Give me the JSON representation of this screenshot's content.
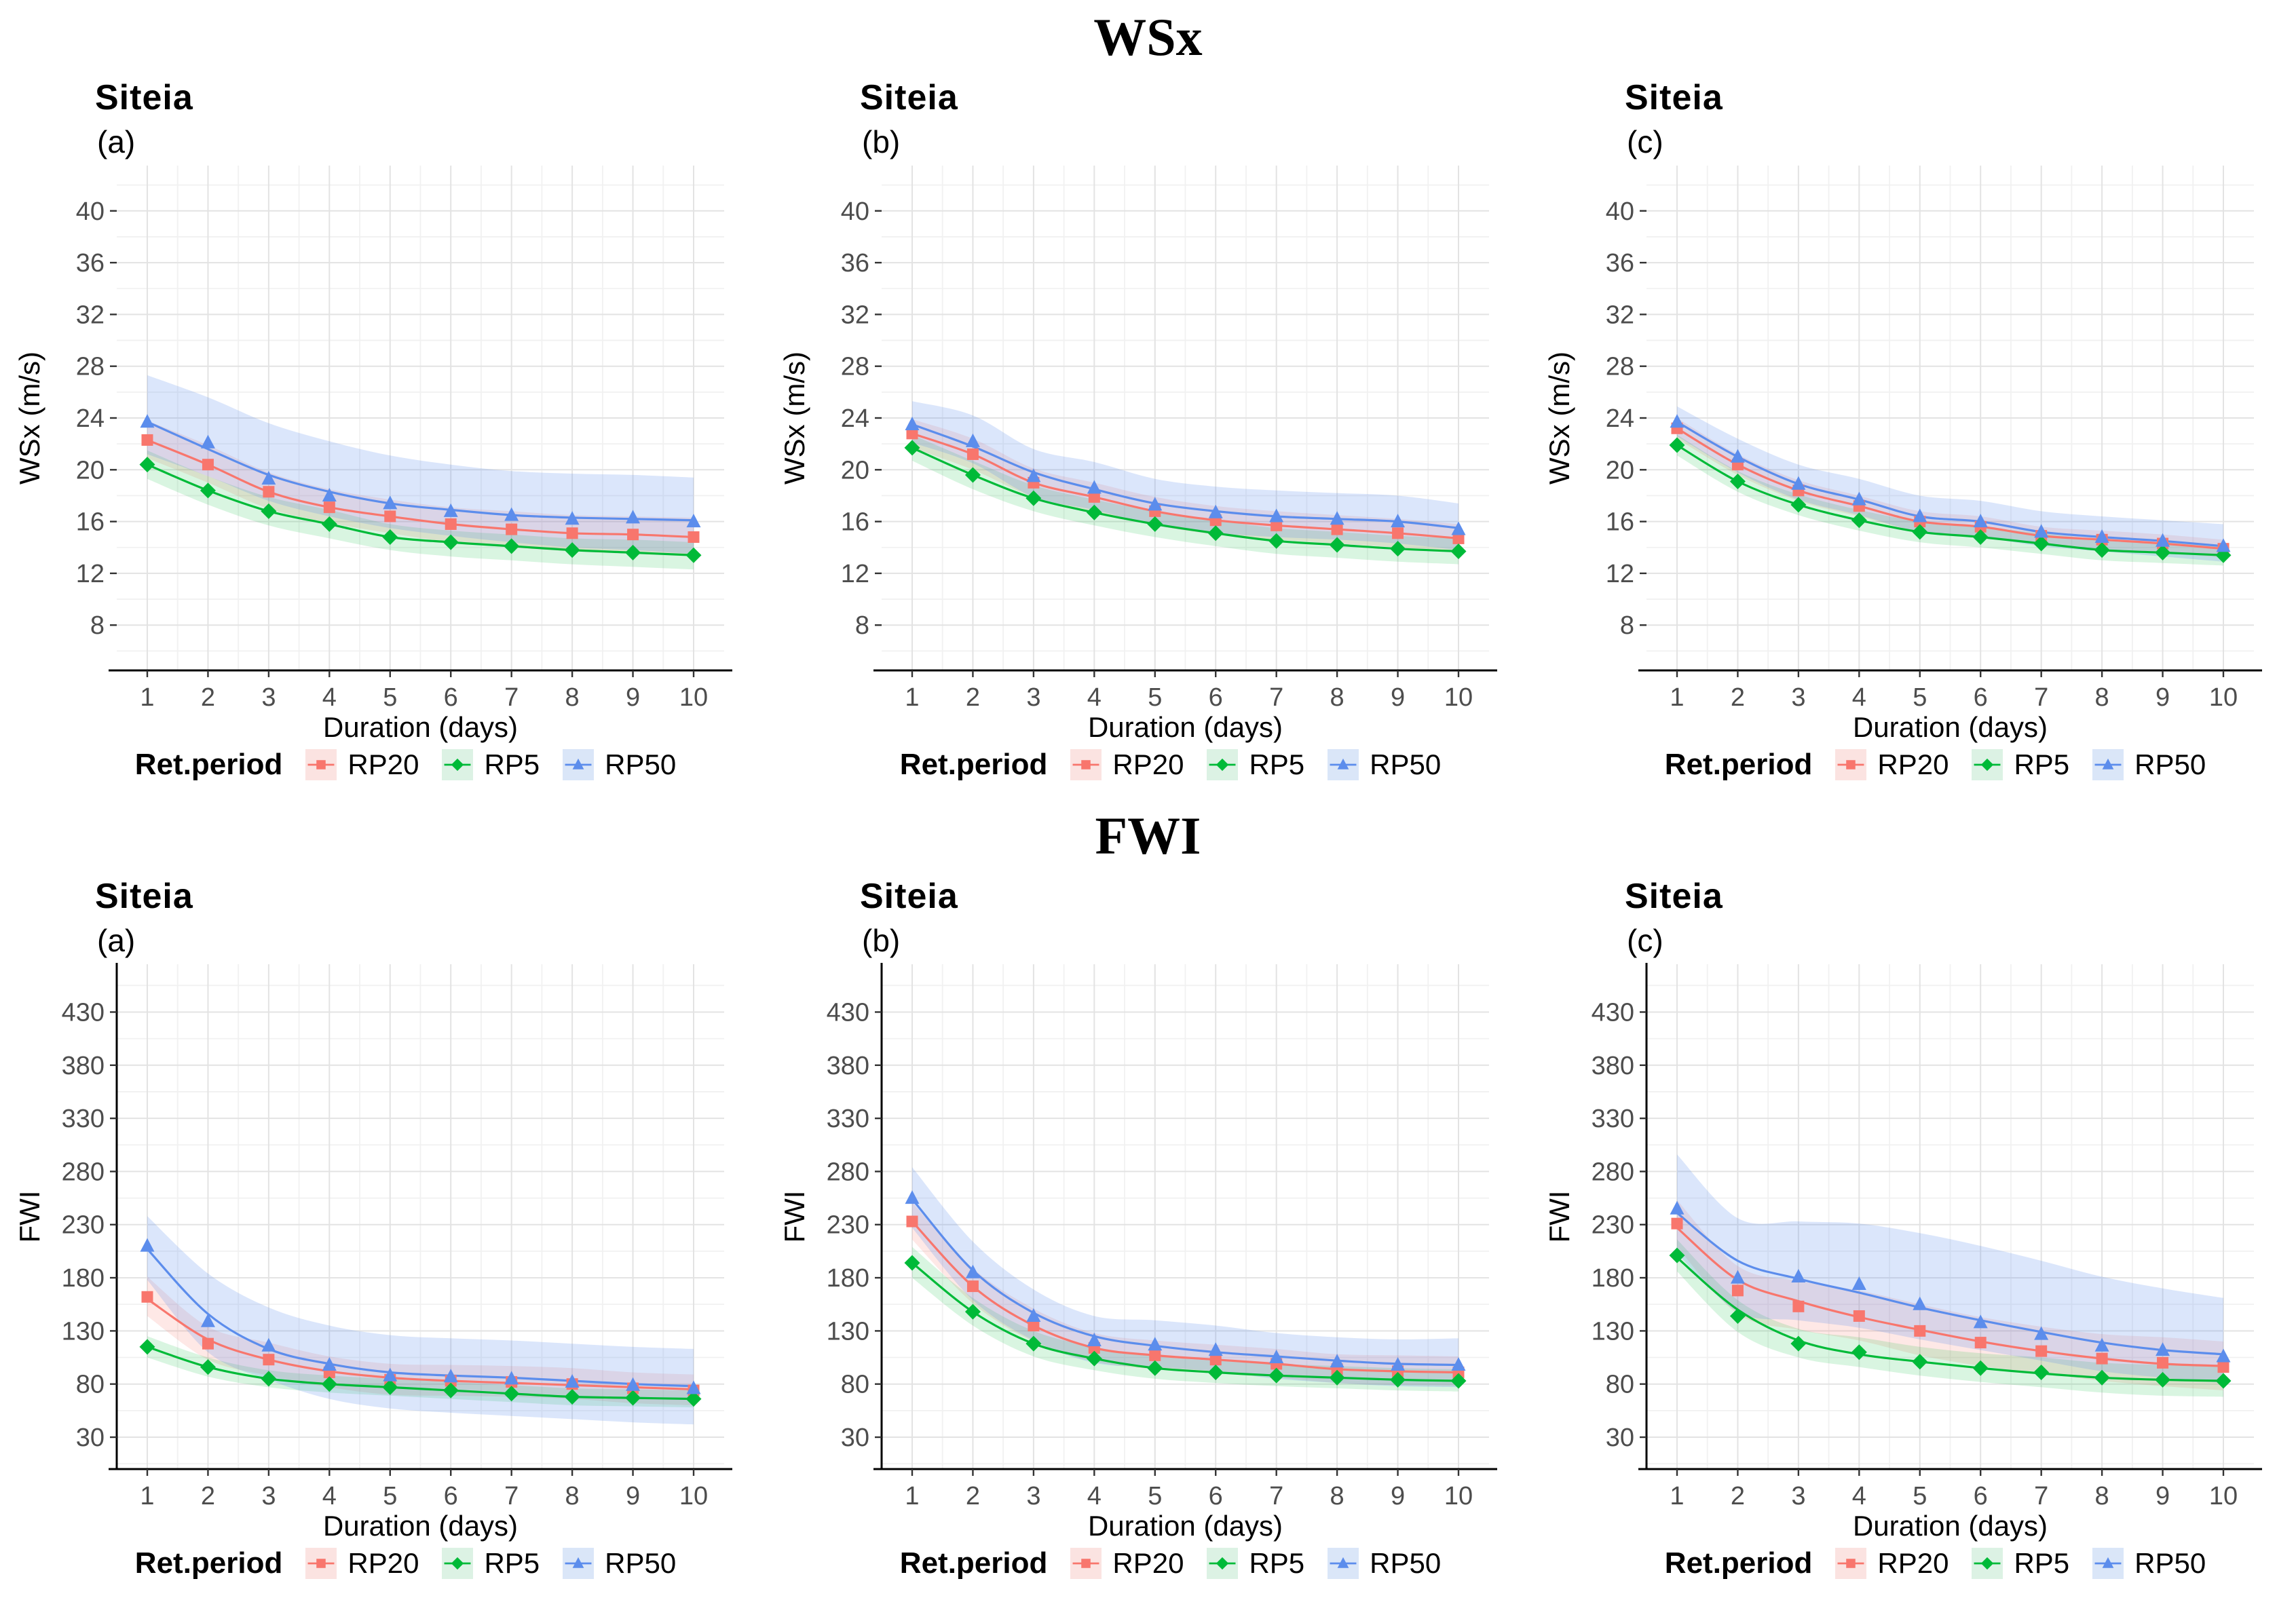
{
  "sections": [
    {
      "title": "WSx"
    },
    {
      "title": "FWI"
    }
  ],
  "legend": {
    "title": "Ret.period",
    "items": [
      {
        "name": "RP20",
        "label": "RP20"
      },
      {
        "name": "RP5",
        "label": "RP5"
      },
      {
        "name": "RP50",
        "label": "RP50"
      }
    ]
  },
  "series_styles": {
    "RP20": {
      "color": "#F8766D",
      "band": "rgba(248,118,109,0.17)",
      "tint": "#FBE3E1",
      "shape": "square"
    },
    "RP5": {
      "color": "#00BA38",
      "band": "rgba(0,186,56,0.15)",
      "tint": "#DCF2E4",
      "shape": "diamond"
    },
    "RP50": {
      "color": "#5C8DEC",
      "band": "rgba(92,141,236,0.22)",
      "tint": "#DAE6F8",
      "shape": "triangle"
    }
  },
  "chart_data": [
    {
      "type": "line",
      "section": "WSx",
      "title": "Siteia",
      "panel_label": "(a)",
      "xlabel": "Duration (days)",
      "ylabel": "WSx (m/s)",
      "x": [
        1,
        2,
        3,
        4,
        5,
        6,
        7,
        8,
        9,
        10
      ],
      "yticks": [
        8,
        12,
        16,
        20,
        24,
        28,
        32,
        36,
        40
      ],
      "ylim": [
        4.5,
        43.5
      ],
      "grid": true,
      "legend_position": "bottom",
      "axis_lines": [
        "bottom"
      ],
      "series": [
        {
          "name": "RP20",
          "values": [
            22.3,
            20.4,
            18.3,
            17.1,
            16.4,
            15.8,
            15.4,
            15.1,
            15.0,
            14.8
          ],
          "lo": [
            20.9,
            19.0,
            17.0,
            15.9,
            15.1,
            14.4,
            14.0,
            13.7,
            13.5,
            13.3
          ],
          "hi": [
            23.8,
            21.9,
            19.8,
            18.5,
            17.7,
            17.1,
            16.8,
            16.5,
            16.4,
            16.3
          ]
        },
        {
          "name": "RP5",
          "values": [
            20.4,
            18.4,
            16.8,
            15.8,
            14.8,
            14.4,
            14.1,
            13.8,
            13.6,
            13.4
          ],
          "lo": [
            19.3,
            17.3,
            15.7,
            14.7,
            13.8,
            13.3,
            13.0,
            12.7,
            12.5,
            12.3
          ],
          "hi": [
            21.5,
            19.5,
            17.9,
            16.9,
            15.8,
            15.3,
            15.0,
            14.7,
            14.6,
            14.4
          ]
        },
        {
          "name": "RP50",
          "values": [
            23.7,
            22.1,
            19.3,
            18.0,
            17.4,
            16.8,
            16.5,
            16.2,
            16.3,
            16.0
          ],
          "line": [
            23.7,
            21.6,
            19.6,
            18.3,
            17.4,
            16.9,
            16.5,
            16.3,
            16.2,
            16.1
          ],
          "lo": [
            21.2,
            19.5,
            17.6,
            16.4,
            15.5,
            14.9,
            14.4,
            14.0,
            13.8,
            13.5
          ],
          "hi": [
            27.3,
            25.6,
            23.6,
            22.2,
            21.1,
            20.4,
            19.9,
            19.7,
            19.6,
            19.4
          ]
        }
      ]
    },
    {
      "type": "line",
      "section": "WSx",
      "title": "Siteia",
      "panel_label": "(b)",
      "xlabel": "Duration (days)",
      "ylabel": "WSx (m/s)",
      "x": [
        1,
        2,
        3,
        4,
        5,
        6,
        7,
        8,
        9,
        10
      ],
      "yticks": [
        8,
        12,
        16,
        20,
        24,
        28,
        32,
        36,
        40
      ],
      "ylim": [
        4.5,
        43.5
      ],
      "grid": true,
      "legend_position": "bottom",
      "axis_lines": [
        "bottom"
      ],
      "series": [
        {
          "name": "RP20",
          "values": [
            22.8,
            21.2,
            19.0,
            17.9,
            16.8,
            16.1,
            15.7,
            15.4,
            15.1,
            14.7
          ],
          "lo": [
            21.7,
            20.0,
            17.9,
            16.8,
            15.7,
            15.0,
            14.6,
            14.3,
            14.0,
            13.6
          ],
          "hi": [
            23.9,
            22.4,
            20.1,
            19.0,
            17.9,
            17.2,
            16.8,
            16.5,
            16.2,
            15.8
          ]
        },
        {
          "name": "RP5",
          "values": [
            21.7,
            19.6,
            17.8,
            16.7,
            15.8,
            15.1,
            14.5,
            14.2,
            13.9,
            13.7
          ],
          "lo": [
            20.7,
            18.5,
            16.8,
            15.7,
            14.8,
            14.1,
            13.5,
            13.2,
            12.9,
            12.7
          ],
          "hi": [
            22.7,
            20.7,
            18.8,
            17.7,
            16.8,
            16.1,
            15.5,
            15.2,
            14.9,
            14.7
          ]
        },
        {
          "name": "RP50",
          "values": [
            23.5,
            22.2,
            19.5,
            18.6,
            17.3,
            16.7,
            16.4,
            16.2,
            16.0,
            15.4
          ],
          "line": [
            23.5,
            21.8,
            19.8,
            18.5,
            17.4,
            16.8,
            16.4,
            16.2,
            16.0,
            15.5
          ],
          "lo": [
            22.1,
            20.5,
            17.9,
            16.9,
            15.7,
            15.1,
            14.8,
            14.6,
            14.3,
            13.8
          ],
          "hi": [
            25.3,
            24.2,
            21.6,
            20.6,
            19.3,
            18.7,
            18.4,
            18.2,
            18.0,
            17.4
          ]
        }
      ]
    },
    {
      "type": "line",
      "section": "WSx",
      "title": "Siteia",
      "panel_label": "(c)",
      "xlabel": "Duration (days)",
      "ylabel": "WSx (m/s)",
      "x": [
        1,
        2,
        3,
        4,
        5,
        6,
        7,
        8,
        9,
        10
      ],
      "yticks": [
        8,
        12,
        16,
        20,
        24,
        28,
        32,
        36,
        40
      ],
      "ylim": [
        4.5,
        43.5
      ],
      "grid": true,
      "legend_position": "bottom",
      "axis_lines": [
        "bottom"
      ],
      "series": [
        {
          "name": "RP20",
          "values": [
            23.2,
            20.4,
            18.4,
            17.2,
            16.0,
            15.6,
            14.9,
            14.6,
            14.3,
            13.9
          ],
          "lo": [
            22.4,
            19.6,
            17.6,
            16.4,
            15.2,
            14.8,
            14.2,
            13.9,
            13.6,
            13.2
          ],
          "hi": [
            24.0,
            21.2,
            19.2,
            18.0,
            16.8,
            16.4,
            15.6,
            15.3,
            15.0,
            14.6
          ]
        },
        {
          "name": "RP5",
          "values": [
            21.9,
            19.1,
            17.3,
            16.1,
            15.2,
            14.8,
            14.3,
            13.8,
            13.6,
            13.4
          ],
          "lo": [
            21.1,
            18.3,
            16.5,
            15.3,
            14.4,
            14.0,
            13.5,
            13.0,
            12.8,
            12.6
          ],
          "hi": [
            22.7,
            19.9,
            18.1,
            16.9,
            16.0,
            15.6,
            15.1,
            14.6,
            14.4,
            14.2
          ]
        },
        {
          "name": "RP50",
          "values": [
            23.7,
            21.0,
            18.9,
            17.7,
            16.4,
            16.0,
            15.2,
            14.8,
            14.5,
            14.1
          ],
          "lo": [
            22.6,
            19.8,
            17.7,
            16.5,
            15.2,
            14.8,
            14.1,
            13.7,
            13.3,
            12.9
          ],
          "hi": [
            24.9,
            22.4,
            20.4,
            19.3,
            18.0,
            17.6,
            16.8,
            16.4,
            16.1,
            15.8
          ]
        }
      ]
    },
    {
      "type": "line",
      "section": "FWI",
      "title": "Siteia",
      "panel_label": "(a)",
      "xlabel": "Duration (days)",
      "ylabel": "FWI",
      "x": [
        1,
        2,
        3,
        4,
        5,
        6,
        7,
        8,
        9,
        10
      ],
      "yticks": [
        30,
        80,
        130,
        180,
        230,
        280,
        330,
        380,
        430
      ],
      "ylim": [
        0,
        475
      ],
      "grid": true,
      "legend_position": "bottom",
      "axis_lines": [
        "left",
        "bottom"
      ],
      "series": [
        {
          "name": "RP20",
          "values": [
            162,
            118,
            103,
            91,
            84,
            83,
            82,
            80,
            76,
            74
          ],
          "line": [
            160,
            122,
            103,
            92,
            86,
            83,
            81,
            79,
            77,
            75
          ],
          "lo": [
            144,
            103,
            88,
            77,
            70,
            69,
            68,
            66,
            62,
            60
          ],
          "hi": [
            181,
            134,
            119,
            106,
            99,
            98,
            97,
            95,
            91,
            89
          ]
        },
        {
          "name": "RP5",
          "values": [
            115,
            96,
            85,
            80,
            77,
            74,
            71,
            68,
            67,
            66
          ],
          "lo": [
            105,
            87,
            77,
            72,
            69,
            66,
            63,
            60,
            59,
            58
          ],
          "hi": [
            125,
            105,
            93,
            88,
            85,
            82,
            79,
            76,
            75,
            74
          ]
        },
        {
          "name": "RP50",
          "values": [
            210,
            139,
            116,
            98,
            88,
            87,
            85,
            82,
            79,
            76
          ],
          "line": [
            207,
            146,
            113,
            99,
            91,
            88,
            86,
            83,
            80,
            78
          ],
          "lo": [
            178,
            110,
            84,
            66,
            57,
            53,
            50,
            47,
            44,
            42
          ],
          "hi": [
            238,
            184,
            152,
            135,
            126,
            123,
            121,
            118,
            115,
            113
          ]
        }
      ]
    },
    {
      "type": "line",
      "section": "FWI",
      "title": "Siteia",
      "panel_label": "(b)",
      "xlabel": "Duration (days)",
      "ylabel": "FWI",
      "x": [
        1,
        2,
        3,
        4,
        5,
        6,
        7,
        8,
        9,
        10
      ],
      "yticks": [
        30,
        80,
        130,
        180,
        230,
        280,
        330,
        380,
        430
      ],
      "ylim": [
        0,
        475
      ],
      "grid": true,
      "legend_position": "bottom",
      "axis_lines": [
        "left",
        "bottom"
      ],
      "series": [
        {
          "name": "RP20",
          "values": [
            233,
            172,
            135,
            114,
            107,
            103,
            99,
            94,
            92,
            91
          ],
          "lo": [
            216,
            156,
            120,
            101,
            94,
            90,
            86,
            81,
            79,
            78
          ],
          "hi": [
            251,
            189,
            151,
            128,
            121,
            117,
            113,
            108,
            107,
            106
          ]
        },
        {
          "name": "RP5",
          "values": [
            194,
            148,
            118,
            104,
            95,
            91,
            88,
            86,
            84,
            83
          ],
          "lo": [
            180,
            135,
            106,
            93,
            85,
            81,
            78,
            76,
            74,
            73
          ],
          "hi": [
            209,
            161,
            130,
            115,
            106,
            102,
            99,
            97,
            95,
            94
          ]
        },
        {
          "name": "RP50",
          "values": [
            255,
            185,
            144,
            121,
            117,
            112,
            105,
            101,
            98,
            98
          ],
          "line": [
            254,
            187,
            147,
            125,
            116,
            110,
            106,
            102,
            99,
            98
          ],
          "lo": [
            227,
            159,
            121,
            100,
            96,
            92,
            85,
            81,
            78,
            77
          ],
          "hi": [
            284,
            214,
            169,
            144,
            140,
            135,
            128,
            124,
            122,
            123
          ]
        }
      ]
    },
    {
      "type": "line",
      "section": "FWI",
      "title": "Siteia",
      "panel_label": "(c)",
      "xlabel": "Duration (days)",
      "ylabel": "FWI",
      "x": [
        1,
        2,
        3,
        4,
        5,
        6,
        7,
        8,
        9,
        10
      ],
      "yticks": [
        30,
        80,
        130,
        180,
        230,
        280,
        330,
        380,
        430
      ],
      "ylim": [
        0,
        475
      ],
      "grid": true,
      "legend_position": "bottom",
      "axis_lines": [
        "left",
        "bottom"
      ],
      "series": [
        {
          "name": "RP20",
          "values": [
            231,
            168,
            153,
            144,
            130,
            119,
            111,
            104,
            100,
            96
          ],
          "line": [
            227,
            178,
            158,
            143,
            131,
            120,
            111,
            104,
            99,
            97
          ],
          "lo": [
            209,
            146,
            131,
            121,
            107,
            97,
            90,
            83,
            78,
            74
          ],
          "hi": [
            253,
            191,
            177,
            168,
            155,
            143,
            134,
            127,
            124,
            120
          ]
        },
        {
          "name": "RP5",
          "values": [
            201,
            144,
            118,
            110,
            101,
            95,
            91,
            86,
            84,
            83
          ],
          "line": [
            199,
            150,
            121,
            108,
            101,
            95,
            90,
            86,
            84,
            83
          ],
          "lo": [
            186,
            129,
            105,
            96,
            88,
            82,
            77,
            72,
            69,
            68
          ],
          "hi": [
            216,
            159,
            132,
            124,
            115,
            109,
            105,
            100,
            98,
            97
          ]
        },
        {
          "name": "RP50",
          "values": [
            245,
            180,
            181,
            174,
            155,
            138,
            127,
            116,
            112,
            106
          ],
          "line": [
            241,
            196,
            179,
            166,
            152,
            140,
            129,
            119,
            112,
            108
          ],
          "lo": [
            203,
            148,
            140,
            133,
            122,
            112,
            102,
            92,
            86,
            81
          ],
          "hi": [
            296,
            236,
            233,
            231,
            222,
            210,
            196,
            181,
            170,
            161
          ]
        }
      ]
    }
  ]
}
